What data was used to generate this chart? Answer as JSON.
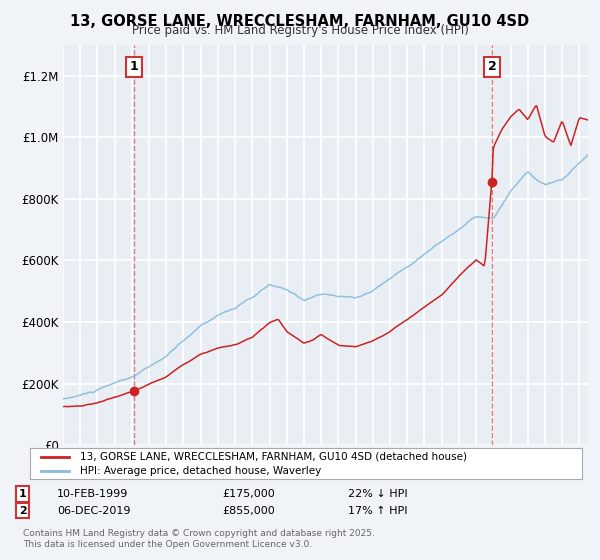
{
  "title": "13, GORSE LANE, WRECCLESHAM, FARNHAM, GU10 4SD",
  "subtitle": "Price paid vs. HM Land Registry's House Price Index (HPI)",
  "legend_label1": "13, GORSE LANE, WRECCLESHAM, FARNHAM, GU10 4SD (detached house)",
  "legend_label2": "HPI: Average price, detached house, Waverley",
  "annotation1_date": "10-FEB-1999",
  "annotation1_price": "£175,000",
  "annotation1_hpi": "22% ↓ HPI",
  "annotation2_date": "06-DEC-2019",
  "annotation2_price": "£855,000",
  "annotation2_hpi": "17% ↑ HPI",
  "footer": "Contains HM Land Registry data © Crown copyright and database right 2025.\nThis data is licensed under the Open Government Licence v3.0.",
  "line_color1": "#cc2222",
  "line_color2": "#88bbdd",
  "vline_color": "#dd6666",
  "background_color": "#f0f4f8",
  "plot_bg_color": "#e8eef4",
  "grid_color": "#ffffff",
  "annotation_box_color": "#cc3333",
  "ylim": [
    0,
    1300000
  ],
  "xlim_start": 1995.0,
  "xlim_end": 2025.5,
  "sale1_x": 1999.11,
  "sale1_y": 175000,
  "sale2_x": 2019.92,
  "sale2_y": 855000
}
